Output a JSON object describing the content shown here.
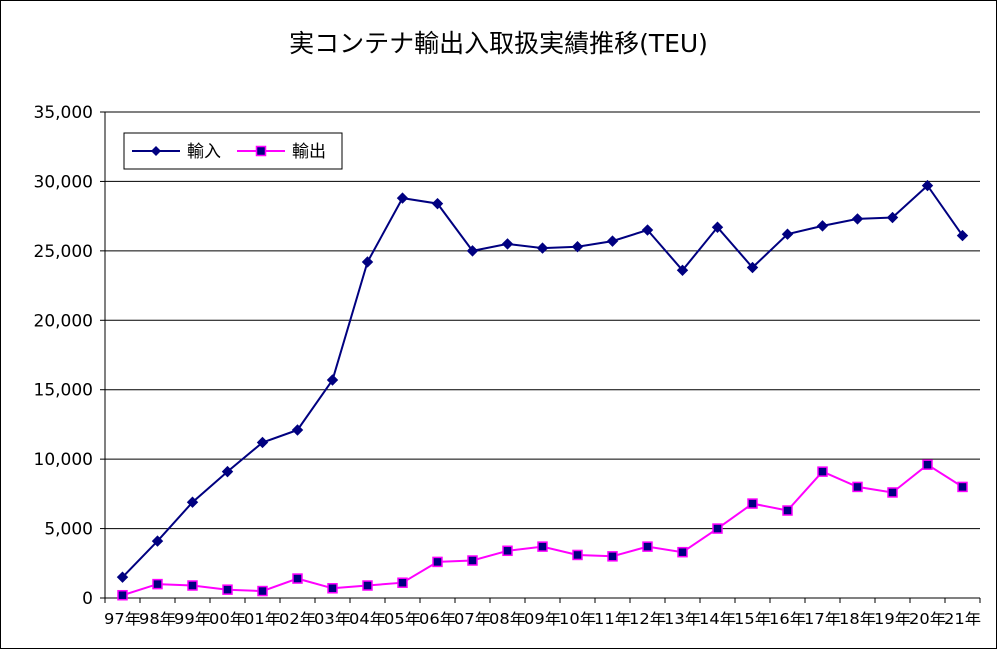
{
  "chart_data": {
    "type": "line",
    "title": "実コンテナ輸出入取扱実績推移(TEU)",
    "xlabel": "",
    "ylabel": "",
    "ylim": [
      0,
      35000
    ],
    "ytick_labels": [
      "0",
      "5,000",
      "10,000",
      "15,000",
      "20,000",
      "25,000",
      "30,000",
      "35,000"
    ],
    "categories": [
      "97年",
      "98年",
      "99年",
      "00年",
      "01年",
      "02年",
      "03年",
      "04年",
      "05年",
      "06年",
      "07年",
      "08年",
      "09年",
      "10年",
      "11年",
      "12年",
      "13年",
      "14年",
      "15年",
      "16年",
      "17年",
      "18年",
      "19年",
      "20年",
      "21年"
    ],
    "grid": true,
    "legend_position": "top-left",
    "series": [
      {
        "name": "輸入",
        "color": "#000080",
        "marker": "diamond",
        "values": [
          1500,
          4100,
          6900,
          9100,
          11200,
          12100,
          15700,
          24200,
          28800,
          28400,
          25000,
          25500,
          25200,
          25300,
          25700,
          26500,
          23600,
          26700,
          23800,
          26200,
          26800,
          27300,
          27400,
          29700,
          26100
        ]
      },
      {
        "name": "輸出",
        "color": "#FF00FF",
        "marker": "square",
        "values": [
          200,
          1000,
          900,
          600,
          500,
          1400,
          700,
          900,
          1100,
          2600,
          2700,
          3400,
          3700,
          3100,
          3000,
          3700,
          3300,
          5000,
          6800,
          6300,
          9100,
          8000,
          7600,
          9600,
          8000
        ]
      }
    ]
  }
}
